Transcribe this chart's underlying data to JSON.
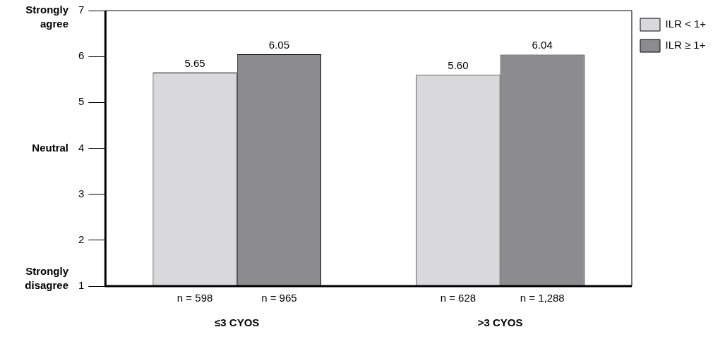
{
  "chart_data": {
    "type": "bar",
    "categories": [
      "≤3 CYOS",
      ">3 CYOS"
    ],
    "series": [
      {
        "name": "ILR < 1+",
        "color": "#d9d9db",
        "values": [
          5.65,
          5.6
        ],
        "value_labels": [
          "5.65",
          "5.60"
        ]
      },
      {
        "name": "ILR ≥ 1+",
        "color": "#8c8c90",
        "values": [
          6.05,
          6.04
        ],
        "value_labels": [
          "6.05",
          "6.04"
        ]
      }
    ],
    "ylim": [
      1,
      7
    ],
    "yticks": [
      1,
      2,
      3,
      4,
      5,
      6,
      7
    ],
    "legend": "top right",
    "annotations": [
      "Strongly agree",
      "Neutral",
      "Strongly disagree",
      {
        "text": "n = 598",
        "x": "≤3 CYOS"
      },
      {
        "text": "n = 965",
        "x": "≤3 CYOS"
      },
      {
        "text": "n = 628",
        "x": ">3 CYOS"
      },
      {
        "text": "n = 1,288",
        "x": ">3 CYOS"
      }
    ]
  }
}
